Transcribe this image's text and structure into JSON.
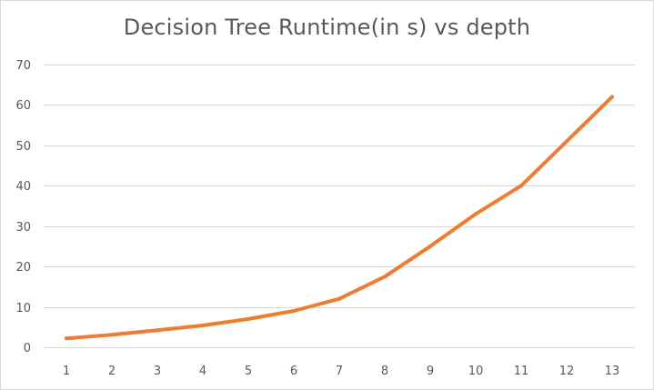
{
  "chart_data": {
    "type": "line",
    "title": "Decision Tree Runtime(in s) vs depth",
    "xlabel": "",
    "ylabel": "",
    "categories": [
      "1",
      "2",
      "3",
      "4",
      "5",
      "6",
      "7",
      "8",
      "9",
      "10",
      "11",
      "12",
      "13"
    ],
    "series": [
      {
        "values": [
          2.2,
          3.1,
          4.2,
          5.4,
          7.0,
          9.0,
          12.0,
          17.5,
          25.0,
          33.0,
          40.0,
          51.0,
          62.0
        ],
        "color": "#ed7d31"
      }
    ],
    "ylim": [
      0,
      70
    ],
    "yticks": [
      0,
      10,
      20,
      30,
      40,
      50,
      60,
      70
    ],
    "grid": true,
    "legend": "none",
    "colors": {
      "gridline": "#d9d9d9",
      "tick_text": "#595959",
      "title_text": "#595959"
    }
  }
}
